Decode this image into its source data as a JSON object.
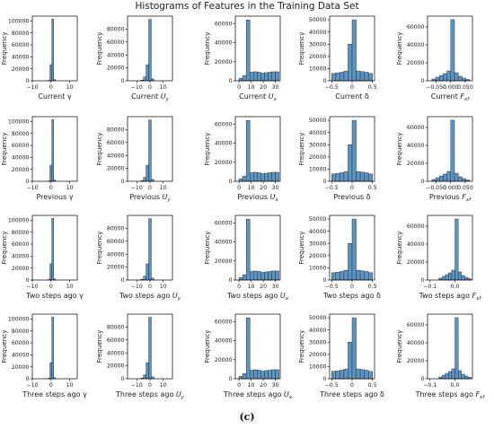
{
  "figure": {
    "title": "Histograms of Features in the Training Data Set",
    "caption": "(c)",
    "bar_color": "#5b93c2",
    "bar_edge": "#2b2b2b"
  },
  "chart_data": [
    {
      "type": "bar",
      "xlabel": "Current γ",
      "ylabel": "Frequency",
      "xlim": [
        -10,
        14
      ],
      "ylim": [
        0,
        108000
      ],
      "xticks": [
        -10,
        0,
        10
      ],
      "yticks": [
        0,
        20000,
        40000,
        60000,
        80000,
        100000
      ],
      "bin_edges": [
        -1.6,
        -0.6,
        0.4,
        1.4,
        2.4
      ],
      "values": [
        800,
        27000,
        103000,
        2000
      ]
    },
    {
      "type": "bar",
      "xlabel": "Current U_y",
      "ylabel": "Frequency",
      "xlim": [
        -17,
        17
      ],
      "ylim": [
        0,
        100000
      ],
      "xticks": [
        -10,
        0,
        10
      ],
      "yticks": [
        0,
        20000,
        40000,
        60000,
        80000
      ],
      "bin_edges": [
        -7,
        -5,
        -3,
        -1,
        1,
        3
      ],
      "values": [
        1000,
        6000,
        25000,
        95000,
        3000
      ]
    },
    {
      "type": "bar",
      "xlabel": "Current U_x",
      "ylabel": "Frequency",
      "xlim": [
        -3,
        34
      ],
      "ylim": [
        0,
        68000
      ],
      "xticks": [
        0,
        10,
        20,
        30
      ],
      "yticks": [
        0,
        20000,
        40000,
        60000
      ],
      "bin_edges": [
        0,
        3,
        6,
        9,
        12,
        15,
        18,
        21,
        24,
        27,
        30,
        33
      ],
      "values": [
        2500,
        5500,
        64000,
        9000,
        9500,
        9000,
        8000,
        8500,
        9000,
        9500,
        9500
      ]
    },
    {
      "type": "bar",
      "xlabel": "Current δ",
      "ylabel": "Frequency",
      "xlim": [
        -0.55,
        0.55
      ],
      "ylim": [
        0,
        53000
      ],
      "xticks": [
        -0.5,
        0,
        0.5
      ],
      "yticks": [
        0,
        10000,
        20000,
        30000,
        40000,
        50000
      ],
      "bin_edges": [
        -0.5,
        -0.4,
        -0.3,
        -0.2,
        -0.1,
        0,
        0.1,
        0.2,
        0.3,
        0.4,
        0.5
      ],
      "values": [
        6000,
        6500,
        7000,
        8000,
        30000,
        50000,
        8000,
        7500,
        7000,
        6000
      ]
    },
    {
      "type": "bar",
      "xlabel": "Current F_xf",
      "ylabel": "Frequency",
      "xlim": [
        -0.08,
        0.075
      ],
      "ylim": [
        0,
        72000
      ],
      "xticks": [
        -0.05,
        0,
        0.05
      ],
      "xticklabels": [
        "−0.050",
        "0.000",
        "0.050"
      ],
      "yticks": [
        0,
        20000,
        40000,
        60000
      ],
      "bin_edges": [
        -0.065,
        -0.052,
        -0.039,
        -0.026,
        -0.013,
        0,
        0.013,
        0.026,
        0.039,
        0.052,
        0.065
      ],
      "values": [
        2000,
        4000,
        6000,
        8000,
        11000,
        68000,
        9000,
        5000,
        3000,
        1500
      ]
    },
    {
      "type": "bar",
      "xlabel": "Previous γ",
      "ylabel": "Frequency",
      "xlim": [
        -10,
        14
      ],
      "ylim": [
        0,
        108000
      ],
      "xticks": [
        -10,
        0,
        10
      ],
      "yticks": [
        0,
        20000,
        40000,
        60000,
        80000,
        100000
      ],
      "bin_edges": [
        -1.6,
        -0.6,
        0.4,
        1.4,
        2.4
      ],
      "values": [
        800,
        27000,
        103000,
        2000
      ]
    },
    {
      "type": "bar",
      "xlabel": "Previous U_y",
      "ylabel": "Frequency",
      "xlim": [
        -17,
        17
      ],
      "ylim": [
        0,
        100000
      ],
      "xticks": [
        -10,
        0,
        10
      ],
      "yticks": [
        0,
        20000,
        40000,
        60000,
        80000
      ],
      "bin_edges": [
        -7,
        -5,
        -3,
        -1,
        1,
        3
      ],
      "values": [
        1000,
        6000,
        25000,
        95000,
        3000
      ]
    },
    {
      "type": "bar",
      "xlabel": "Previous U_x",
      "ylabel": "Frequency",
      "xlim": [
        -3,
        34
      ],
      "ylim": [
        0,
        68000
      ],
      "xticks": [
        0,
        10,
        20,
        30
      ],
      "yticks": [
        0,
        20000,
        40000,
        60000
      ],
      "bin_edges": [
        0,
        3,
        6,
        9,
        12,
        15,
        18,
        21,
        24,
        27,
        30,
        33
      ],
      "values": [
        2500,
        5500,
        64000,
        9000,
        9500,
        9000,
        8000,
        8500,
        9000,
        9500,
        9500
      ]
    },
    {
      "type": "bar",
      "xlabel": "Previous δ",
      "ylabel": "Frequency",
      "xlim": [
        -0.55,
        0.55
      ],
      "ylim": [
        0,
        53000
      ],
      "xticks": [
        -0.5,
        0,
        0.5
      ],
      "yticks": [
        0,
        10000,
        20000,
        30000,
        40000,
        50000
      ],
      "bin_edges": [
        -0.5,
        -0.4,
        -0.3,
        -0.2,
        -0.1,
        0,
        0.1,
        0.2,
        0.3,
        0.4,
        0.5
      ],
      "values": [
        6000,
        6500,
        7000,
        8000,
        30000,
        50000,
        8000,
        7500,
        7000,
        6000
      ]
    },
    {
      "type": "bar",
      "xlabel": "Previous F_xf",
      "ylabel": "Frequency",
      "xlim": [
        -0.08,
        0.075
      ],
      "ylim": [
        0,
        72000
      ],
      "xticks": [
        -0.05,
        0,
        0.05
      ],
      "xticklabels": [
        "−0.050",
        "0.000",
        "0.050"
      ],
      "yticks": [
        0,
        20000,
        40000,
        60000
      ],
      "bin_edges": [
        -0.065,
        -0.052,
        -0.039,
        -0.026,
        -0.013,
        0,
        0.013,
        0.026,
        0.039,
        0.052,
        0.065
      ],
      "values": [
        2000,
        4000,
        6000,
        8000,
        11000,
        68000,
        9000,
        5000,
        3000,
        1500
      ]
    },
    {
      "type": "bar",
      "xlabel": "Two steps ago γ",
      "ylabel": "Frequency",
      "xlim": [
        -10,
        14
      ],
      "ylim": [
        0,
        108000
      ],
      "xticks": [
        -10,
        0,
        10
      ],
      "yticks": [
        0,
        20000,
        40000,
        60000,
        80000,
        100000
      ],
      "bin_edges": [
        -1.6,
        -0.6,
        0.4,
        1.4,
        2.4
      ],
      "values": [
        800,
        27000,
        103000,
        2000
      ]
    },
    {
      "type": "bar",
      "xlabel": "Two steps ago U_y",
      "ylabel": "Frequency",
      "xlim": [
        -17,
        17
      ],
      "ylim": [
        0,
        100000
      ],
      "xticks": [
        -10,
        0,
        10
      ],
      "yticks": [
        0,
        20000,
        40000,
        60000,
        80000
      ],
      "bin_edges": [
        -7,
        -5,
        -3,
        -1,
        1,
        3
      ],
      "values": [
        1000,
        6000,
        25000,
        95000,
        3000
      ]
    },
    {
      "type": "bar",
      "xlabel": "Two steps ago U_x",
      "ylabel": "Frequency",
      "xlim": [
        -3,
        34
      ],
      "ylim": [
        0,
        68000
      ],
      "xticks": [
        0,
        10,
        20,
        30
      ],
      "yticks": [
        0,
        20000,
        40000,
        60000
      ],
      "bin_edges": [
        0,
        3,
        6,
        9,
        12,
        15,
        18,
        21,
        24,
        27,
        30,
        33
      ],
      "values": [
        2500,
        5500,
        64000,
        9000,
        9500,
        9000,
        8000,
        8500,
        9000,
        9500,
        9500
      ]
    },
    {
      "type": "bar",
      "xlabel": "Two steps ago δ",
      "ylabel": "Frequency",
      "xlim": [
        -0.55,
        0.55
      ],
      "ylim": [
        0,
        53000
      ],
      "xticks": [
        -0.5,
        0,
        0.5
      ],
      "yticks": [
        0,
        10000,
        20000,
        30000,
        40000,
        50000
      ],
      "bin_edges": [
        -0.5,
        -0.4,
        -0.3,
        -0.2,
        -0.1,
        0,
        0.1,
        0.2,
        0.3,
        0.4,
        0.5
      ],
      "values": [
        6000,
        6500,
        7000,
        8000,
        30000,
        50000,
        8000,
        7500,
        7000,
        6000
      ]
    },
    {
      "type": "bar",
      "xlabel": "Two steps ago F_xf",
      "ylabel": "Frequency",
      "xlim": [
        -0.11,
        0.07
      ],
      "ylim": [
        0,
        72000
      ],
      "xticks": [
        -0.1,
        0
      ],
      "xticklabels": [
        "−0.1",
        "0.0"
      ],
      "yticks": [
        0,
        20000,
        40000,
        60000
      ],
      "bin_edges": [
        -0.065,
        -0.052,
        -0.039,
        -0.026,
        -0.013,
        0,
        0.013,
        0.026,
        0.039,
        0.052,
        0.065
      ],
      "values": [
        2000,
        4000,
        6000,
        8000,
        11000,
        68000,
        9000,
        5000,
        3000,
        1500
      ]
    },
    {
      "type": "bar",
      "xlabel": "Three steps ago γ",
      "ylabel": "Frequency",
      "xlim": [
        -10,
        14
      ],
      "ylim": [
        0,
        108000
      ],
      "xticks": [
        -10,
        0,
        10
      ],
      "yticks": [
        0,
        20000,
        40000,
        60000,
        80000,
        100000
      ],
      "bin_edges": [
        -1.6,
        -0.6,
        0.4,
        1.4,
        2.4
      ],
      "values": [
        800,
        27000,
        103000,
        2000
      ]
    },
    {
      "type": "bar",
      "xlabel": "Three steps ago U_y",
      "ylabel": "Frequency",
      "xlim": [
        -17,
        17
      ],
      "ylim": [
        0,
        100000
      ],
      "xticks": [
        -10,
        0,
        10
      ],
      "yticks": [
        0,
        20000,
        40000,
        60000,
        80000
      ],
      "bin_edges": [
        -7,
        -5,
        -3,
        -1,
        1,
        3
      ],
      "values": [
        1000,
        6000,
        25000,
        95000,
        3000
      ]
    },
    {
      "type": "bar",
      "xlabel": "Three steps ago U_x",
      "ylabel": "Frequency",
      "xlim": [
        -3,
        34
      ],
      "ylim": [
        0,
        68000
      ],
      "xticks": [
        0,
        10,
        20,
        30
      ],
      "yticks": [
        0,
        20000,
        40000,
        60000
      ],
      "bin_edges": [
        0,
        3,
        6,
        9,
        12,
        15,
        18,
        21,
        24,
        27,
        30,
        33
      ],
      "values": [
        2500,
        5500,
        64000,
        9000,
        9500,
        9000,
        8000,
        8500,
        9000,
        9500,
        9500
      ]
    },
    {
      "type": "bar",
      "xlabel": "Three steps ago δ",
      "ylabel": "Frequency",
      "xlim": [
        -0.55,
        0.55
      ],
      "ylim": [
        0,
        53000
      ],
      "xticks": [
        -0.5,
        0,
        0.5
      ],
      "yticks": [
        0,
        10000,
        20000,
        30000,
        40000,
        50000
      ],
      "bin_edges": [
        -0.5,
        -0.4,
        -0.3,
        -0.2,
        -0.1,
        0,
        0.1,
        0.2,
        0.3,
        0.4,
        0.5
      ],
      "values": [
        6000,
        6500,
        7000,
        8000,
        30000,
        50000,
        8000,
        7500,
        7000,
        6000
      ]
    },
    {
      "type": "bar",
      "xlabel": "Three steps ago F_xf",
      "ylabel": "Frequency",
      "xlim": [
        -0.11,
        0.07
      ],
      "ylim": [
        0,
        72000
      ],
      "xticks": [
        -0.1,
        0
      ],
      "xticklabels": [
        "−0.1",
        "0.0"
      ],
      "yticks": [
        0,
        20000,
        40000,
        60000
      ],
      "bin_edges": [
        -0.065,
        -0.052,
        -0.039,
        -0.026,
        -0.013,
        0,
        0.013,
        0.026,
        0.039,
        0.052,
        0.065
      ],
      "values": [
        2000,
        4000,
        6000,
        8000,
        11000,
        68000,
        9000,
        5000,
        3000,
        1500
      ]
    }
  ]
}
